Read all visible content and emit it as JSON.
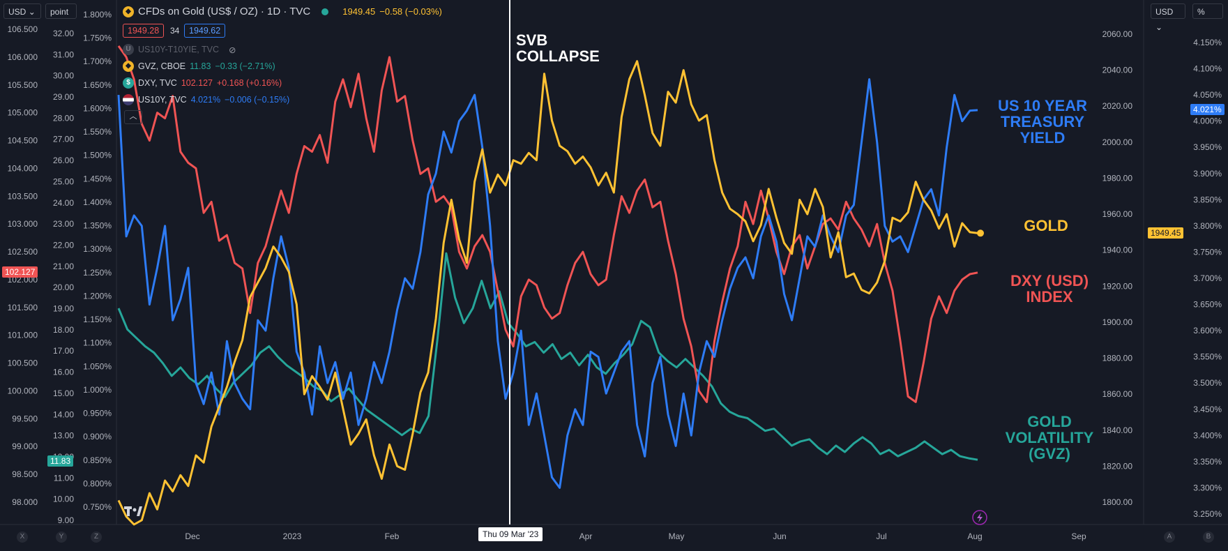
{
  "toolbar": {
    "left_currency": "USD",
    "left_unit": "point",
    "right_currency": "USD",
    "right_unit": "%"
  },
  "legend": {
    "main_title": "CFDs on Gold (US$ / OZ) · 1D · TVC",
    "main_last": "1949.45",
    "main_change": "−0.58 (−0.03%)",
    "bid": "1949.28",
    "spread": "34",
    "ask": "1949.62",
    "hidden_series": "US10Y-T10YIE, TVC",
    "rows": [
      {
        "symbol": "GVZ, CBOE",
        "last": "11.83",
        "change": "−0.33 (−2.71%)",
        "color": "#26a69a",
        "icon": "gvz-icon"
      },
      {
        "symbol": "DXY, TVC",
        "last": "102.127",
        "change": "+0.168 (+0.16%)",
        "color": "#f05454",
        "icon": "dollar-icon"
      },
      {
        "symbol": "US10Y, TVC",
        "last": "4.021%",
        "change": "−0.006 (−0.15%)",
        "color": "#2e7cf6",
        "icon": "us-flag-icon"
      }
    ]
  },
  "annotations": {
    "svb": "SVB\nCOLLAPSE",
    "us10y": "US 10 YEAR\nTREASURY\nYIELD",
    "gold": "GOLD",
    "dxy": "DXY (USD)\nINDEX",
    "gvz": "GOLD\nVOLATILITY\n(GVZ)"
  },
  "crosshair_label": "Thu 09 Mar '23",
  "axis_tags": {
    "dxy_last": "102.127",
    "gvz_last": "11.83",
    "gold_last": "1949.45",
    "us10y_last": "4.021%"
  },
  "bottom_buttons": {
    "x": "X",
    "y": "Y",
    "z": "Z",
    "a": "A",
    "b": "B"
  },
  "colors": {
    "gold": "#ffc233",
    "dxy": "#f05454",
    "us10y": "#2e7cf6",
    "gvz": "#26a69a",
    "background": "#161a25"
  },
  "chart_data": {
    "type": "line",
    "x_axis": {
      "tick_labels": [
        "Dec",
        "2023",
        "Feb",
        "Apr",
        "May",
        "Jun",
        "Jul",
        "Aug",
        "Sep"
      ]
    },
    "y_axes": {
      "dxy_axis": {
        "ticks": [
          "106.500",
          "106.000",
          "105.500",
          "105.000",
          "104.500",
          "104.000",
          "103.500",
          "103.000",
          "102.500",
          "102.000",
          "101.500",
          "101.000",
          "100.500",
          "100.000",
          "99.500",
          "99.000",
          "98.500",
          "98.000"
        ],
        "range": [
          97.8,
          106.8
        ]
      },
      "gvz_axis": {
        "ticks": [
          "32.00",
          "31.00",
          "30.00",
          "29.00",
          "28.00",
          "27.00",
          "26.00",
          "25.00",
          "24.00",
          "23.00",
          "22.00",
          "21.00",
          "20.00",
          "19.00",
          "18.00",
          "17.00",
          "16.00",
          "15.00",
          "14.00",
          "13.00",
          "12.00",
          "11.00",
          "10.00",
          "9.00"
        ],
        "range": [
          8.7,
          33.2
        ]
      },
      "us10y_spread_axis": {
        "ticks": [
          "1.800%",
          "1.750%",
          "1.700%",
          "1.650%",
          "1.600%",
          "1.550%",
          "1.500%",
          "1.450%",
          "1.400%",
          "1.350%",
          "1.300%",
          "1.250%",
          "1.200%",
          "1.150%",
          "1.100%",
          "1.050%",
          "1.000%",
          "0.950%",
          "0.900%",
          "0.850%",
          "0.800%",
          "0.750%"
        ]
      },
      "gold_axis": {
        "ticks": [
          "2060.00",
          "2040.00",
          "2020.00",
          "2000.00",
          "1980.00",
          "1960.00",
          "1940.00",
          "1920.00",
          "1900.00",
          "1880.00",
          "1860.00",
          "1840.00",
          "1820.00",
          "1800.00"
        ],
        "range": [
          1788,
          2067
        ]
      },
      "us10y_axis": {
        "ticks": [
          "4.150%",
          "4.100%",
          "4.050%",
          "4.000%",
          "3.950%",
          "3.900%",
          "3.850%",
          "3.800%",
          "3.750%",
          "3.700%",
          "3.650%",
          "3.600%",
          "3.550%",
          "3.500%",
          "3.450%",
          "3.400%",
          "3.350%",
          "3.300%",
          "3.250%"
        ],
        "range": [
          3.22,
          4.17
        ]
      }
    },
    "series": [
      {
        "name": "GOLD",
        "axis": "gold_axis",
        "color": "#ffc233",
        "values": [
          1801,
          1792,
          1785,
          1790,
          1805,
          1796,
          1812,
          1806,
          1815,
          1809,
          1826,
          1822,
          1842,
          1853,
          1864,
          1878,
          1890,
          1914,
          1922,
          1930,
          1942,
          1936,
          1928,
          1910,
          1860,
          1870,
          1864,
          1857,
          1872,
          1852,
          1832,
          1838,
          1846,
          1826,
          1813,
          1832,
          1820,
          1818,
          1838,
          1861,
          1872,
          1902,
          1944,
          1968,
          1946,
          1933,
          1978,
          1996,
          1972,
          1982,
          1976,
          1990,
          1988,
          1994,
          1990,
          2038,
          2012,
          1998,
          1995,
          1988,
          1992,
          1986,
          1976,
          1983,
          1972,
          2014,
          2035,
          2045,
          2026,
          2005,
          1998,
          2028,
          2022,
          2040,
          2021,
          2012,
          2015,
          1990,
          1972,
          1963,
          1960,
          1956,
          1945,
          1954,
          1974,
          1958,
          1944,
          1938,
          1968,
          1960,
          1974,
          1964,
          1936,
          1950,
          1925,
          1927,
          1918,
          1916,
          1922,
          1934,
          1958,
          1956,
          1961,
          1978,
          1968,
          1962,
          1952,
          1960,
          1942,
          1955,
          1950,
          1949.45
        ]
      },
      {
        "name": "DXY (USD) INDEX",
        "axis": "dxy_axis",
        "color": "#f05454",
        "values": [
          106.2,
          106.0,
          105.6,
          104.8,
          104.5,
          105.0,
          104.9,
          105.3,
          104.3,
          104.1,
          104.0,
          103.2,
          103.4,
          102.7,
          102.8,
          102.3,
          102.2,
          101.4,
          102.3,
          102.6,
          103.1,
          103.6,
          103.2,
          103.9,
          104.4,
          104.3,
          104.6,
          104.1,
          105.2,
          105.6,
          105.1,
          105.7,
          104.9,
          104.3,
          105.4,
          106.0,
          105.2,
          105.3,
          104.5,
          103.9,
          104.0,
          103.4,
          103.5,
          103.3,
          102.5,
          102.2,
          102.6,
          102.8,
          102.5,
          101.8,
          101.1,
          100.8,
          101.7,
          102.0,
          101.9,
          101.5,
          101.3,
          101.4,
          101.9,
          102.3,
          102.5,
          102.1,
          101.9,
          102.0,
          102.8,
          103.5,
          103.2,
          103.6,
          103.8,
          103.3,
          103.4,
          102.7,
          102.1,
          101.3,
          100.8,
          100.0,
          99.8,
          100.9,
          101.6,
          102.2,
          102.6,
          103.4,
          103.0,
          103.6,
          103.1,
          102.5,
          102.1,
          102.6,
          102.8,
          102.2,
          102.6,
          103.0,
          103.1,
          102.9,
          103.4,
          103.1,
          102.9,
          102.6,
          103.0,
          102.3,
          101.8,
          100.9,
          99.9,
          99.8,
          100.5,
          101.3,
          101.7,
          101.4,
          101.8,
          102.0,
          102.1,
          102.127
        ]
      },
      {
        "name": "US 10 YEAR TREASURY YIELD",
        "axis": "us10y_axis",
        "color": "#2e7cf6",
        "values": [
          4.05,
          3.78,
          3.82,
          3.8,
          3.65,
          3.72,
          3.8,
          3.62,
          3.66,
          3.72,
          3.5,
          3.46,
          3.52,
          3.44,
          3.58,
          3.5,
          3.47,
          3.45,
          3.62,
          3.6,
          3.7,
          3.78,
          3.72,
          3.56,
          3.52,
          3.44,
          3.57,
          3.5,
          3.54,
          3.47,
          3.52,
          3.42,
          3.47,
          3.54,
          3.5,
          3.56,
          3.64,
          3.7,
          3.68,
          3.75,
          3.86,
          3.9,
          3.98,
          3.94,
          4.0,
          4.02,
          4.05,
          3.95,
          3.8,
          3.58,
          3.47,
          3.52,
          3.6,
          3.42,
          3.48,
          3.4,
          3.32,
          3.3,
          3.4,
          3.45,
          3.42,
          3.56,
          3.55,
          3.48,
          3.52,
          3.56,
          3.58,
          3.42,
          3.36,
          3.5,
          3.55,
          3.44,
          3.38,
          3.48,
          3.4,
          3.52,
          3.58,
          3.55,
          3.62,
          3.68,
          3.72,
          3.74,
          3.7,
          3.78,
          3.82,
          3.77,
          3.67,
          3.62,
          3.7,
          3.78,
          3.76,
          3.82,
          3.78,
          3.75,
          3.82,
          3.84,
          3.96,
          4.08,
          3.96,
          3.8,
          3.77,
          3.78,
          3.75,
          3.8,
          3.85,
          3.87,
          3.82,
          3.95,
          4.05,
          4.0,
          4.02,
          4.021
        ]
      },
      {
        "name": "GOLD VOLATILITY (GVZ)",
        "axis": "gvz_axis",
        "color": "#26a69a",
        "values": [
          19.0,
          18.0,
          17.6,
          17.2,
          16.9,
          16.4,
          15.8,
          16.2,
          15.7,
          15.4,
          15.8,
          15.2,
          14.8,
          15.5,
          15.9,
          16.3,
          16.9,
          17.2,
          16.7,
          16.3,
          16.0,
          15.7,
          15.3,
          15.1,
          14.6,
          14.9,
          15.2,
          14.7,
          14.2,
          13.9,
          13.6,
          13.3,
          13.0,
          13.3,
          13.1,
          13.9,
          17.5,
          21.6,
          19.5,
          18.3,
          19.0,
          20.3,
          19.0,
          19.8,
          18.3,
          17.8,
          17.2,
          17.4,
          16.9,
          17.3,
          16.6,
          16.9,
          16.3,
          16.8,
          16.2,
          15.9,
          16.4,
          16.8,
          17.3,
          18.4,
          18.1,
          16.9,
          16.5,
          16.2,
          16.6,
          16.2,
          15.8,
          15.3,
          14.5,
          14.1,
          13.9,
          13.8,
          13.5,
          13.2,
          13.3,
          12.9,
          12.5,
          12.7,
          12.8,
          12.4,
          12.1,
          12.5,
          12.2,
          12.6,
          12.9,
          12.6,
          12.1,
          12.3,
          12.0,
          12.2,
          12.4,
          12.7,
          12.4,
          12.1,
          12.3,
          12.0,
          11.9,
          11.83
        ]
      }
    ]
  }
}
